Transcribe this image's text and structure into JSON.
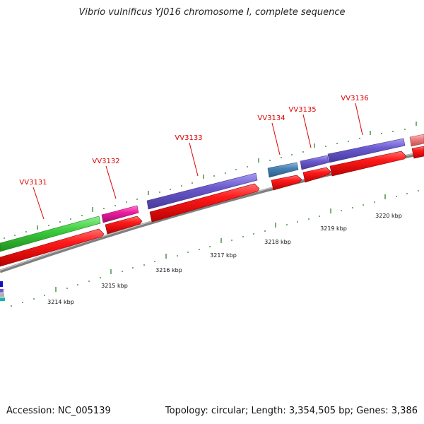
{
  "title": "Vibrio vulnificus YJ016 chromosome I, complete sequence",
  "footer": {
    "accession_label": "Accession: NC_005139",
    "summary": "Topology: circular; Length: 3,354,505 bp; Genes: 3,386"
  },
  "colors": {
    "red_arrow": "#ee1111",
    "green": "#3ecc3e",
    "magenta": "#ee1ba0",
    "purple": "#6a5acd",
    "steel_blue": "#4682b4",
    "salmon": "#f08080",
    "backbone": "#888888",
    "tick": "#1a7a1a",
    "label_red": "#dd0000"
  },
  "gene_labels": [
    "VV3131",
    "VV3132",
    "VV3133",
    "VV3134",
    "VV3135",
    "VV3136"
  ],
  "scale_labels": [
    "3214 kbp",
    "3215 kbp",
    "3216 kbp",
    "3217 kbp",
    "3218 kbp",
    "3219 kbp",
    "3220 kbp"
  ]
}
